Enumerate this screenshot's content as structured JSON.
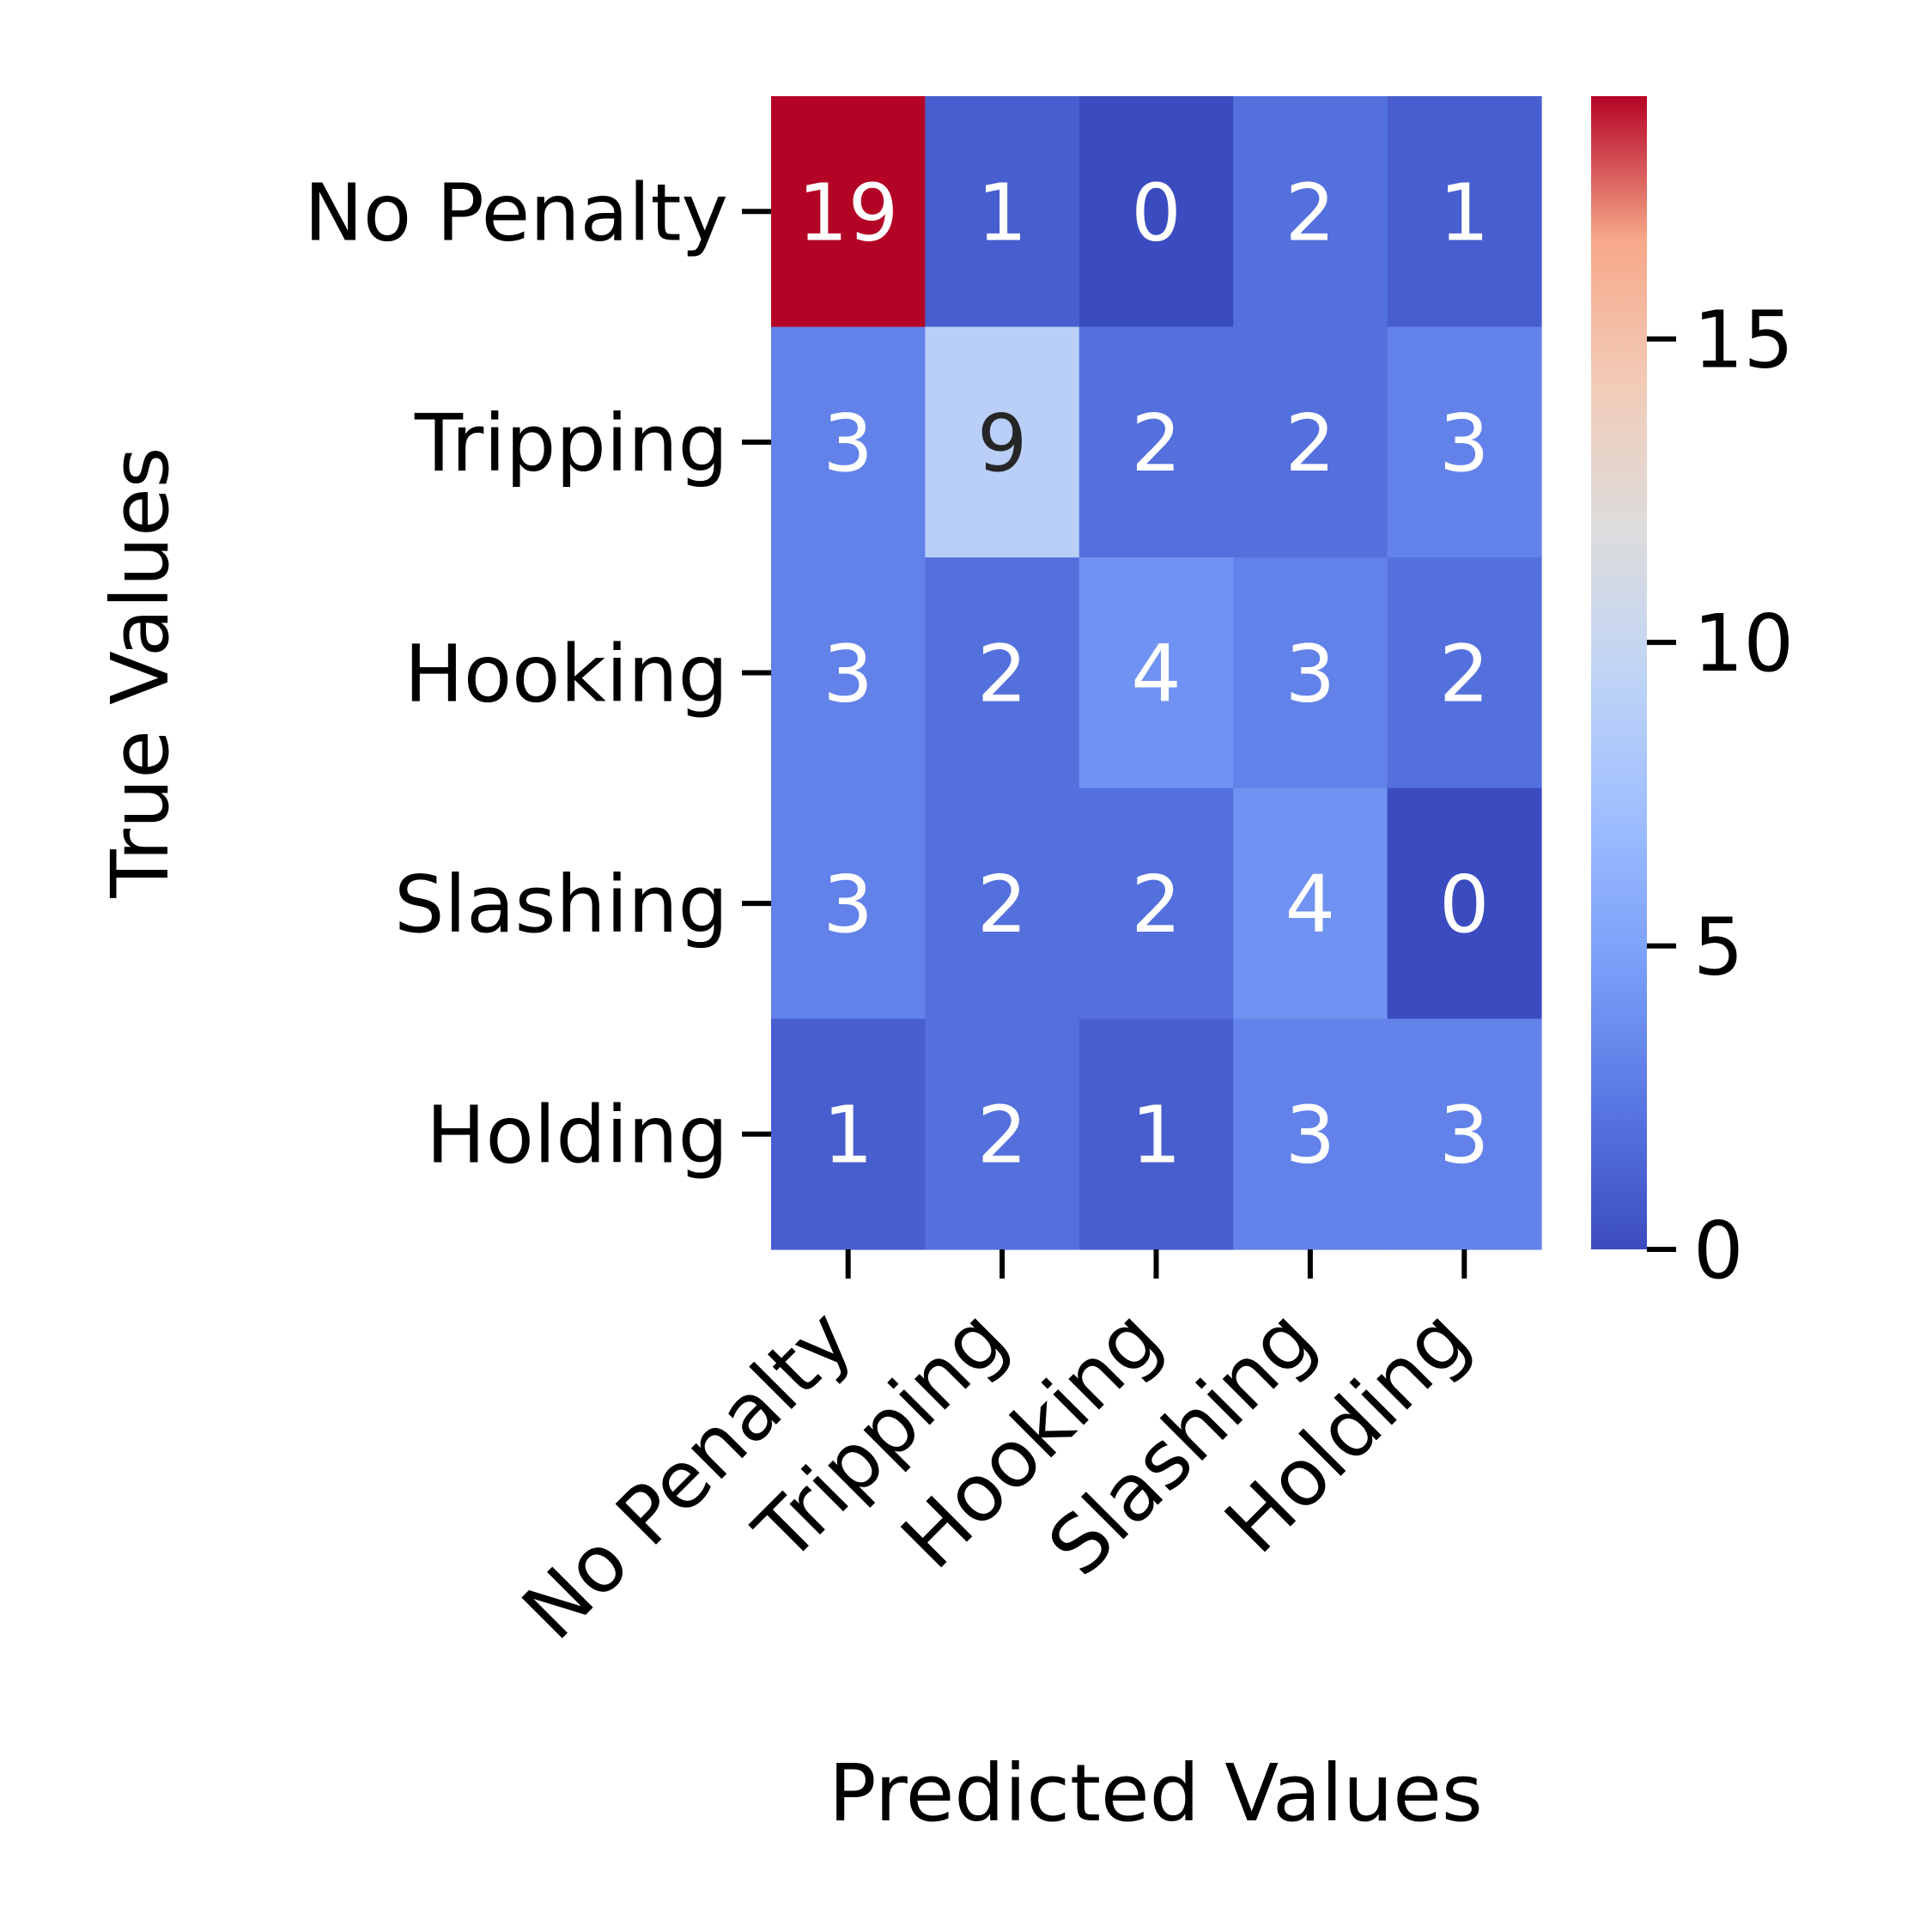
{
  "chart_data": {
    "type": "heatmap",
    "title": "",
    "xlabel": "Predicted Values",
    "ylabel": "True Values",
    "x_categories": [
      "No Penalty",
      "Tripping",
      "Hooking",
      "Slashing",
      "Holding"
    ],
    "y_categories": [
      "No Penalty",
      "Tripping",
      "Hooking",
      "Slashing",
      "Holding"
    ],
    "values": [
      [
        19,
        1,
        0,
        2,
        1
      ],
      [
        3,
        9,
        2,
        2,
        3
      ],
      [
        3,
        2,
        4,
        3,
        2
      ],
      [
        3,
        2,
        2,
        4,
        0
      ],
      [
        1,
        2,
        1,
        3,
        3
      ]
    ],
    "colormap": "coolwarm",
    "vmin": 0,
    "vmax": 19,
    "colorbar_ticks": [
      0,
      5,
      10,
      15
    ],
    "colorbar_tick_labels": [
      "0",
      "5",
      "10",
      "15"
    ],
    "annotation_colors": {
      "light": "#ffffff",
      "dark": "#262626"
    }
  }
}
